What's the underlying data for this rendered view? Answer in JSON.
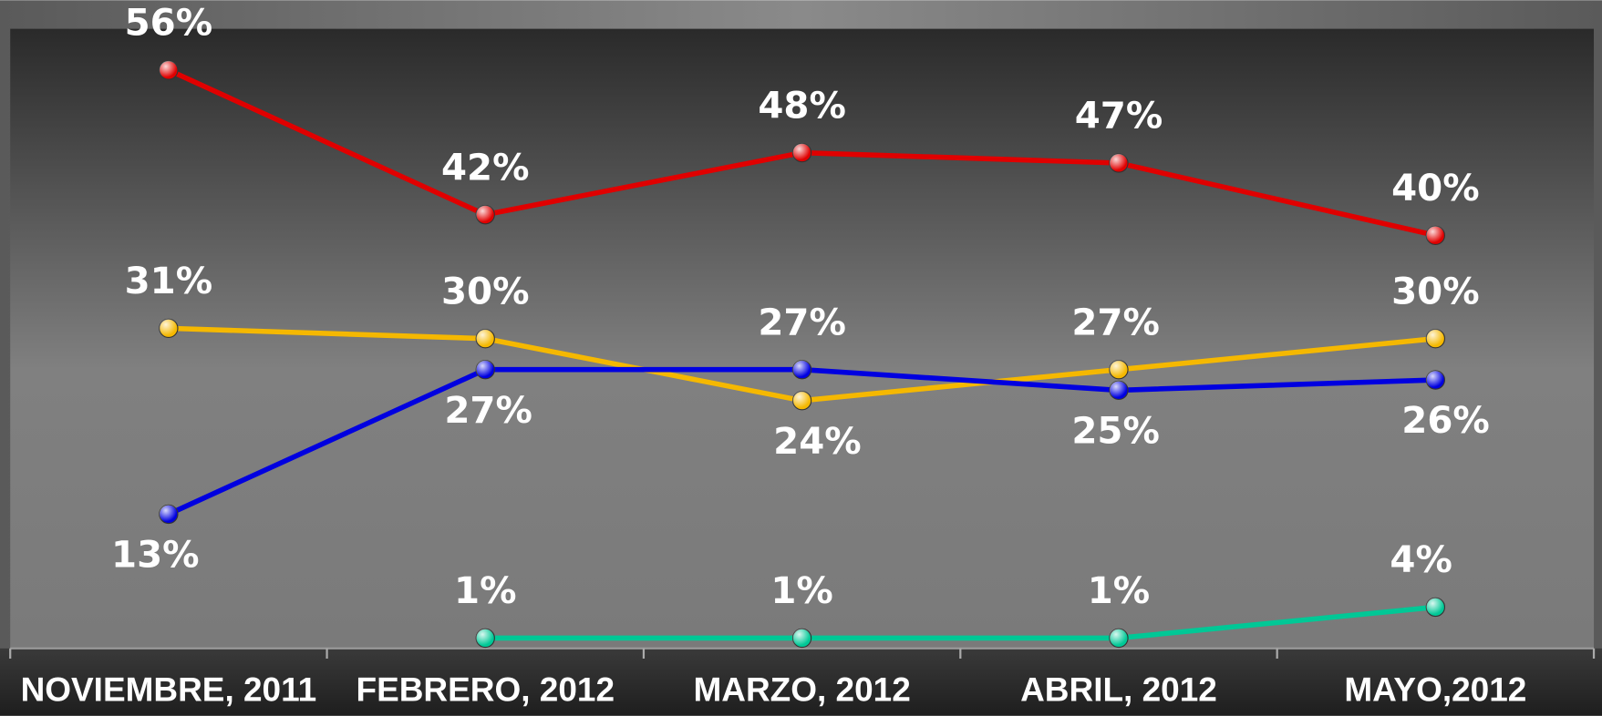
{
  "chart_data": {
    "type": "line",
    "categories": [
      "NOVIEMBRE, 2011",
      "FEBRERO, 2012",
      "MARZO, 2012",
      "ABRIL, 2012",
      "MAYO,2012"
    ],
    "series": [
      {
        "color": "#e00000",
        "values": [
          56,
          42,
          48,
          47,
          40
        ],
        "value_labels": [
          "56%",
          "42%",
          "48%",
          "47%",
          "40%"
        ]
      },
      {
        "color": "#f5b800",
        "values": [
          31,
          30,
          24,
          27,
          30
        ],
        "value_labels": [
          "31%",
          "30%",
          "24%",
          "27%",
          "30%"
        ]
      },
      {
        "color": "#0000e0",
        "values": [
          13,
          27,
          27,
          25,
          26
        ],
        "value_labels": [
          "13%",
          "27%",
          "27%",
          "25%",
          "26%"
        ]
      },
      {
        "color": "#00c896",
        "values": [
          null,
          1,
          1,
          1,
          4
        ],
        "value_labels": [
          null,
          "1%",
          "1%",
          "1%",
          "4%"
        ]
      }
    ],
    "ylim": [
      0,
      60
    ]
  }
}
